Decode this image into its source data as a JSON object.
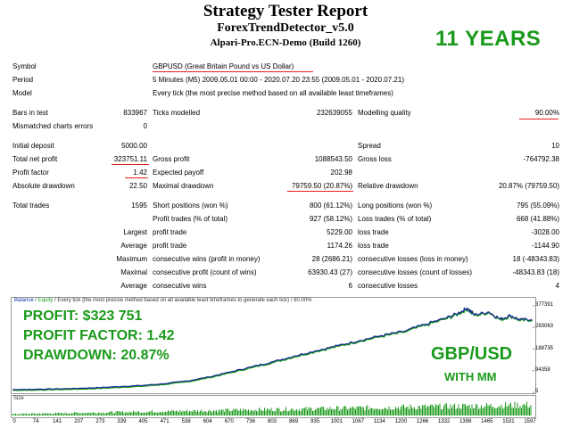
{
  "header": {
    "title": "Strategy Tester Report",
    "ea_name": "ForexTrendDetector_v5.0",
    "account": "Alpari-Pro.ECN-Demo (Build 1260)",
    "badge": "11 YEARS"
  },
  "info": {
    "symbol_label": "Symbol",
    "symbol_value": "GBPUSD (Great Britain Pound vs US Dollar)",
    "period_label": "Period",
    "period_value": "5 Minutes (M5) 2009.05.01 00:00 - 2020.07.20 23:55 (2009.05.01 - 2020.07.21)",
    "model_label": "Model",
    "model_value": "Every tick (the most precise method based on all available least timeframes)"
  },
  "stats": {
    "bars_label": "Bars in test",
    "bars_value": "833967",
    "ticks_label": "Ticks modelled",
    "ticks_value": "232639055",
    "quality_label": "Modelling quality",
    "quality_value": "90.00%",
    "mismatch_label": "Mismatched charts errors",
    "mismatch_value": "0",
    "deposit_label": "Initial deposit",
    "deposit_value": "5000.00",
    "spread_label": "Spread",
    "spread_value": "10",
    "netprofit_label": "Total net profit",
    "netprofit_value": "323751.11",
    "grossprofit_label": "Gross profit",
    "grossprofit_value": "1088543.50",
    "grossloss_label": "Gross loss",
    "grossloss_value": "-764792.38",
    "pf_label": "Profit factor",
    "pf_value": "1.42",
    "payoff_label": "Expected payoff",
    "payoff_value": "202.98",
    "absdd_label": "Absolute drawdown",
    "absdd_value": "22.50",
    "maxdd_label": "Maximal drawdown",
    "maxdd_value": "79759.50 (20.87%)",
    "reldd_label": "Relative drawdown",
    "reldd_value": "20.87% (79759.50)",
    "trades_label": "Total trades",
    "trades_value": "1595",
    "short_label": "Short positions (won %)",
    "short_value": "800 (61.12%)",
    "long_label": "Long positions (won %)",
    "long_value": "795 (55.09%)",
    "ptrades_label": "Profit trades (% of total)",
    "ptrades_value": "927 (58.12%)",
    "ltrades_label": "Loss trades (% of total)",
    "ltrades_value": "668 (41.88%)",
    "largest_label": "Largest",
    "lprofit_label": "profit trade",
    "lprofit_value": "5229.00",
    "lloss_label": "loss trade",
    "lloss_value": "-3028.00",
    "average_label": "Average",
    "aprofit_label": "profit trade",
    "aprofit_value": "1174.26",
    "aloss_label": "loss trade",
    "aloss_value": "-1144.90",
    "maximum_label": "Maximum",
    "mcw_label": "consecutive wins (profit in money)",
    "mcw_value": "28 (2686.21)",
    "mcl_label": "consecutive losses (loss in money)",
    "mcl_value": "18 (-48343.83)",
    "maximal_label": "Maximal",
    "mcp_label": "consecutive profit (count of wins)",
    "mcp_value": "63930.43 (27)",
    "mclc_label": "consecutive losses (count of losses)",
    "mclc_value": "-48343.83 (18)",
    "average2_label": "Average",
    "acw_label": "consecutive wins",
    "acw_value": "6",
    "acl_label": "consecutive losses",
    "acl_value": "4"
  },
  "chart": {
    "header_balance": "Balance",
    "header_sep": " / ",
    "header_equity": "Equity",
    "header_rest": " / Every tick (the most precise method based on all available least timeframes to generate each tick) / 90.00%",
    "size_label": "Size",
    "overlay_profit_label": "PROFIT:",
    "overlay_profit_value": "$323 751",
    "overlay_pf_label": "PROFIT FACTOR:",
    "overlay_pf_value": "1.42",
    "overlay_dd_label": "DRAWDOWN:",
    "overlay_dd_value": "20.87%",
    "overlay_pair": "GBP/USD",
    "overlay_mm": "WITH MM",
    "colors": {
      "balance": "#1a2a9a",
      "equity": "#1a9a1a",
      "overlay": "#1a9a1a",
      "underline": "#e02020"
    }
  },
  "chart_data": {
    "type": "line",
    "title": "",
    "y_ticks": [
      "377391",
      "283063",
      "188735",
      "94358",
      "5"
    ],
    "x_ticks": [
      "0",
      "74",
      "141",
      "207",
      "273",
      "339",
      "405",
      "471",
      "538",
      "604",
      "670",
      "736",
      "803",
      "869",
      "935",
      "1001",
      "1067",
      "1134",
      "1200",
      "1266",
      "1332",
      "1398",
      "1465",
      "1531",
      "1597"
    ],
    "ylim": [
      5,
      377391
    ],
    "xlim": [
      0,
      1597
    ],
    "series": [
      {
        "x": [
          0,
          40,
          74,
          141,
          207,
          273,
          339,
          405,
          471,
          538,
          604,
          670,
          736,
          803,
          869,
          935,
          1001,
          1067,
          1134,
          1200,
          1266,
          1332,
          1370,
          1398,
          1420,
          1465,
          1500,
          1531,
          1560,
          1597
        ],
        "y": [
          5000,
          5200,
          6000,
          8000,
          10500,
          14000,
          19000,
          24000,
          32000,
          44000,
          62000,
          85000,
          108000,
          132000,
          158000,
          182000,
          205000,
          228000,
          250000,
          268000,
          300000,
          330000,
          352000,
          375000,
          345000,
          358000,
          325000,
          342000,
          322000,
          325000
        ]
      }
    ]
  }
}
